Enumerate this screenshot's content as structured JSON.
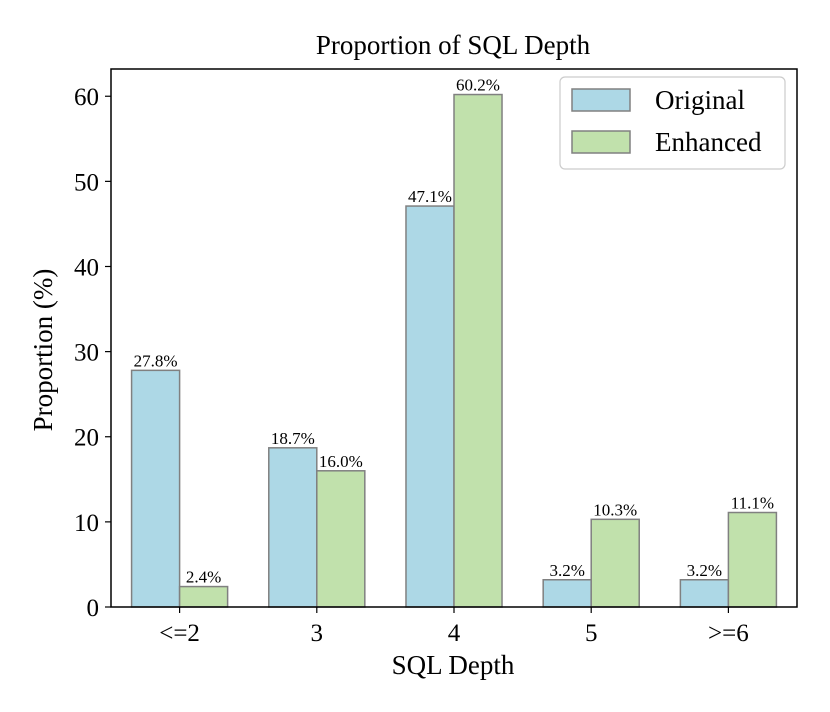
{
  "chart_data": {
    "type": "bar",
    "title": "Proportion of SQL Depth",
    "xlabel": "SQL Depth",
    "ylabel": "Proportion (%)",
    "categories": [
      "<=2",
      "3",
      "4",
      "5",
      ">=6"
    ],
    "ylim": [
      0,
      63.2
    ],
    "yticks": [
      0,
      10,
      20,
      30,
      40,
      50,
      60
    ],
    "grid": false,
    "legend_position": "top-right",
    "series": [
      {
        "name": "Original",
        "color": "#ADD8E6",
        "values": [
          27.8,
          18.7,
          47.1,
          3.2,
          3.2
        ],
        "labels": [
          "27.8%",
          "18.7%",
          "47.1%",
          "3.2%",
          "3.2%"
        ]
      },
      {
        "name": "Enhanced",
        "color": "#C1E1AC",
        "values": [
          2.4,
          16.0,
          60.2,
          10.3,
          11.1
        ],
        "labels": [
          "2.4%",
          "16.0%",
          "60.2%",
          "10.3%",
          "11.1%"
        ]
      }
    ],
    "edge_color": "#808080"
  }
}
